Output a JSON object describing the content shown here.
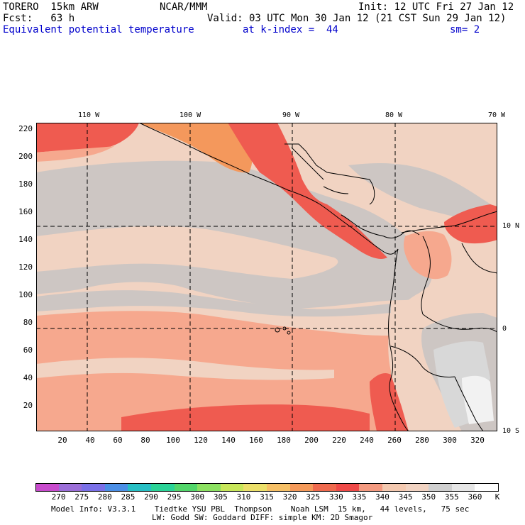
{
  "header": {
    "model": "TORERO  15km ARW",
    "org": "NCAR/MMM",
    "init": "Init: 12 UTC Fri 27 Jan 12",
    "fcst": "Fcst:   63 h",
    "valid": "Valid: 03 UTC Mon 30 Jan 12 (21 CST Sun 29 Jan 12)",
    "field": "Equivalent potential temperature",
    "level": "at k-index =  44",
    "smooth": "sm= 2"
  },
  "axes": {
    "x_ticks": [
      "20",
      "40",
      "60",
      "80",
      "100",
      "120",
      "140",
      "160",
      "180",
      "200",
      "220",
      "240",
      "260",
      "280",
      "300",
      "320"
    ],
    "y_ticks": [
      "220",
      "200",
      "180",
      "160",
      "140",
      "120",
      "100",
      "80",
      "60",
      "40",
      "20"
    ],
    "lon_labels": [
      "110 W",
      "100 W",
      "90 W",
      "80 W",
      "70 W"
    ],
    "lat_labels": [
      "10 N",
      "0",
      "10 S"
    ]
  },
  "colorbar": {
    "unit": "K",
    "values": [
      "270",
      "275",
      "280",
      "285",
      "290",
      "295",
      "300",
      "305",
      "310",
      "315",
      "320",
      "325",
      "330",
      "335",
      "340",
      "345",
      "350",
      "355",
      "360"
    ],
    "colors": [
      "#c84bcd",
      "#9b6ed8",
      "#7a70e8",
      "#4b8fe6",
      "#27bfc4",
      "#2ad397",
      "#52d66a",
      "#8ce161",
      "#c8e75a",
      "#ece06a",
      "#f6c066",
      "#f59a5a",
      "#ef6a4e",
      "#ef4a48",
      "#f49a80",
      "#f4c9b0",
      "#f1d3c2",
      "#cfcfcf",
      "#e6e6e6",
      "#ffffff"
    ]
  },
  "footer": {
    "line1": "Model Info: V3.3.1    Tiedtke YSU PBL  Thompson    Noah LSM  15 km,   44 levels,   75 sec",
    "line2": "LW: Godd SW: Goddard DIFF: simple KM: 2D Smagor"
  },
  "map_colors": {
    "base": "#f1d3c2",
    "gray": "#cdc6c3",
    "lightgray": "#d8d8d8",
    "salmon": "#f6a88e",
    "red": "#ef5b50",
    "orange": "#f4985c",
    "white": "#f2f2f2"
  }
}
